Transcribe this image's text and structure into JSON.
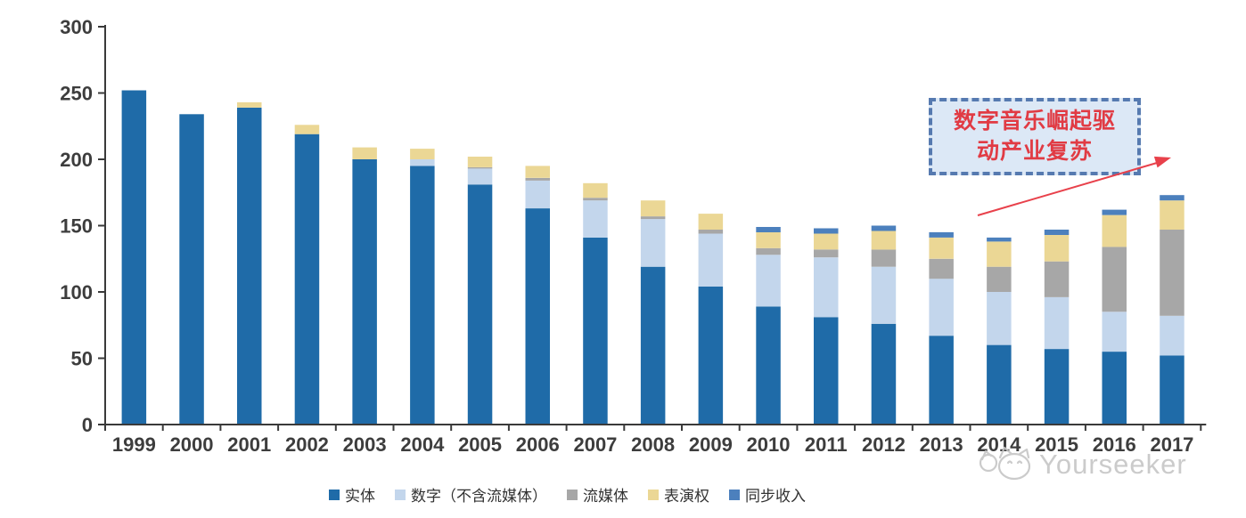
{
  "chart_data": {
    "type": "bar",
    "stacked": true,
    "title": "",
    "xlabel": "",
    "ylabel": "",
    "grid": false,
    "legend_position": "bottom",
    "ylim": [
      0,
      300
    ],
    "yticks": [
      0,
      50,
      100,
      150,
      200,
      250,
      300
    ],
    "categories": [
      "1999",
      "2000",
      "2001",
      "2002",
      "2003",
      "2004",
      "2005",
      "2006",
      "2007",
      "2008",
      "2009",
      "2010",
      "2011",
      "2012",
      "2013",
      "2014",
      "2015",
      "2016",
      "2017"
    ],
    "series": [
      {
        "name": "实体",
        "color": "#1f6ba8",
        "values": [
          252,
          234,
          239,
          219,
          200,
          195,
          181,
          163,
          141,
          119,
          104,
          89,
          81,
          76,
          67,
          60,
          57,
          55,
          52
        ]
      },
      {
        "name": "数字（不含流媒体）",
        "color": "#c3d6ec",
        "values": [
          0,
          0,
          0,
          0,
          0,
          5,
          12,
          21,
          28,
          36,
          40,
          39,
          45,
          43,
          43,
          40,
          39,
          30,
          30
        ]
      },
      {
        "name": "流媒体",
        "color": "#a7a7a7",
        "values": [
          0,
          0,
          0,
          0,
          0,
          0,
          1,
          2,
          2,
          2,
          3,
          5,
          6,
          13,
          15,
          19,
          27,
          49,
          65
        ]
      },
      {
        "name": "表演权",
        "color": "#ebd795",
        "values": [
          0,
          0,
          4,
          7,
          9,
          8,
          8,
          9,
          11,
          12,
          12,
          12,
          12,
          14,
          16,
          19,
          20,
          24,
          22
        ]
      },
      {
        "name": "同步收入",
        "color": "#4c80bd",
        "values": [
          0,
          0,
          0,
          0,
          0,
          0,
          0,
          0,
          0,
          0,
          0,
          4,
          4,
          4,
          4,
          3,
          4,
          4,
          4
        ]
      }
    ]
  },
  "annotation": {
    "line1": "数字音乐崛起驱",
    "line2": "动产业复苏"
  },
  "colors": {
    "axis": "#3a3a3a",
    "tick_label": "#3d3d3d",
    "annotation_border": "#567ab0",
    "annotation_fill": "#dce8f6",
    "annotation_text": "#e13b44",
    "arrow": "#e8414b",
    "watermark": "#c6c6c6"
  },
  "watermark": {
    "text": "Yourseeker"
  }
}
